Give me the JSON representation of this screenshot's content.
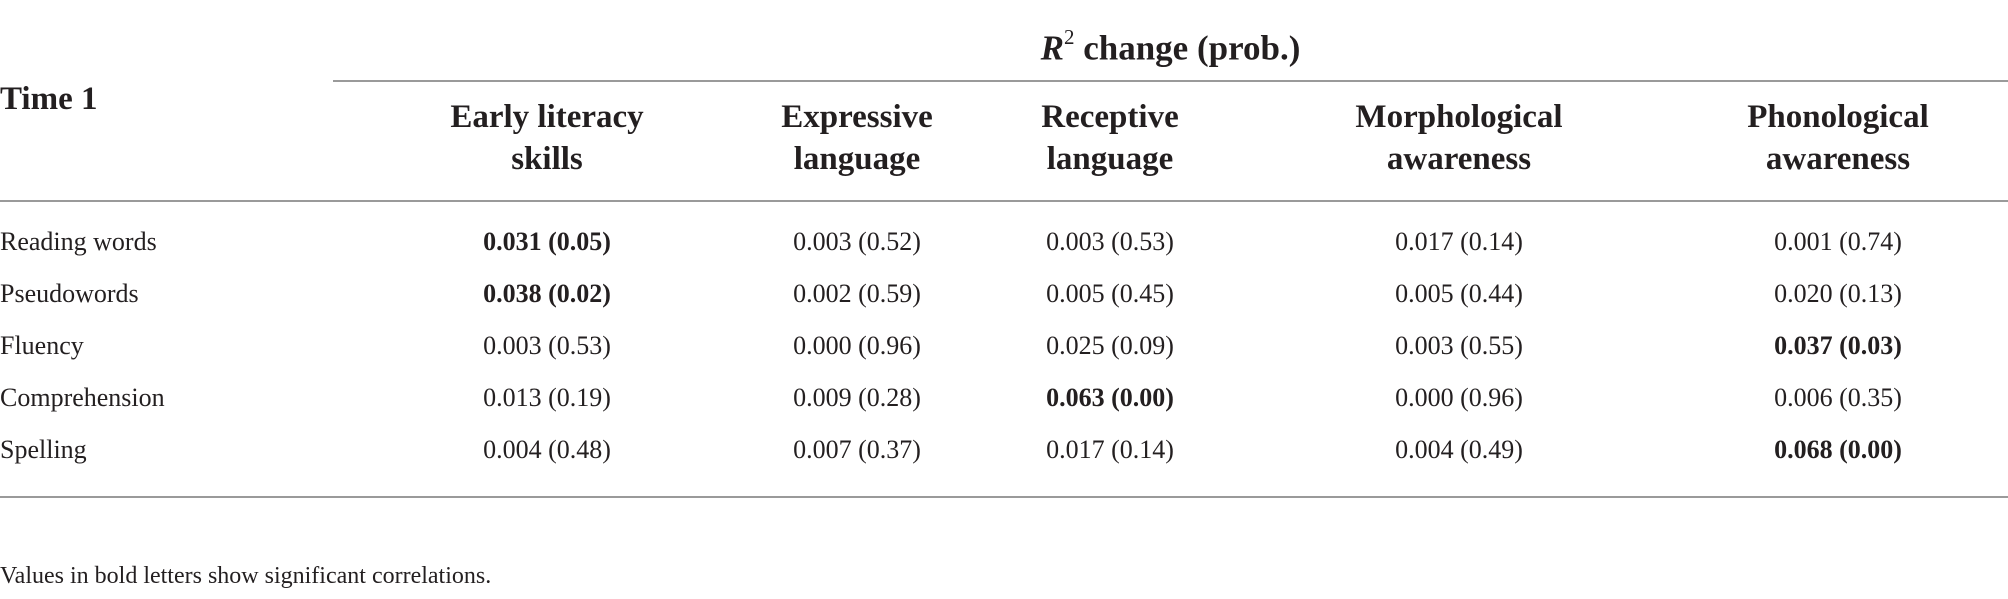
{
  "table": {
    "group_header": {
      "r": "R",
      "sup": "2",
      "rest": " change (prob.)"
    },
    "stub_header": "Time 1",
    "columns": [
      {
        "line1": "Early literacy",
        "line2": "skills"
      },
      {
        "line1": "Expressive",
        "line2": "language"
      },
      {
        "line1": "Receptive",
        "line2": "language"
      },
      {
        "line1": "Morphological",
        "line2": "awareness"
      },
      {
        "line1": "Phonological",
        "line2": "awareness"
      }
    ],
    "rows": [
      {
        "label": "Reading words",
        "cells": [
          "0.031 (0.05)",
          "0.003 (0.52)",
          "0.003 (0.53)",
          "0.017 (0.14)",
          "0.001 (0.74)"
        ],
        "significant": [
          true,
          false,
          false,
          false,
          false
        ]
      },
      {
        "label": "Pseudowords",
        "cells": [
          "0.038 (0.02)",
          "0.002 (0.59)",
          "0.005 (0.45)",
          "0.005 (0.44)",
          "0.020 (0.13)"
        ],
        "significant": [
          true,
          false,
          false,
          false,
          false
        ]
      },
      {
        "label": "Fluency",
        "cells": [
          "0.003 (0.53)",
          "0.000 (0.96)",
          "0.025 (0.09)",
          "0.003 (0.55)",
          "0.037 (0.03)"
        ],
        "significant": [
          false,
          false,
          false,
          false,
          true
        ]
      },
      {
        "label": "Comprehension",
        "cells": [
          "0.013 (0.19)",
          "0.009 (0.28)",
          "0.063 (0.00)",
          "0.000 (0.96)",
          "0.006 (0.35)"
        ],
        "significant": [
          false,
          false,
          true,
          false,
          false
        ]
      },
      {
        "label": "Spelling",
        "cells": [
          "0.004 (0.48)",
          "0.007 (0.37)",
          "0.017 (0.14)",
          "0.004 (0.49)",
          "0.068 (0.00)"
        ],
        "significant": [
          false,
          false,
          false,
          false,
          true
        ]
      }
    ],
    "footnote": "Values in bold letters show significant correlations."
  }
}
